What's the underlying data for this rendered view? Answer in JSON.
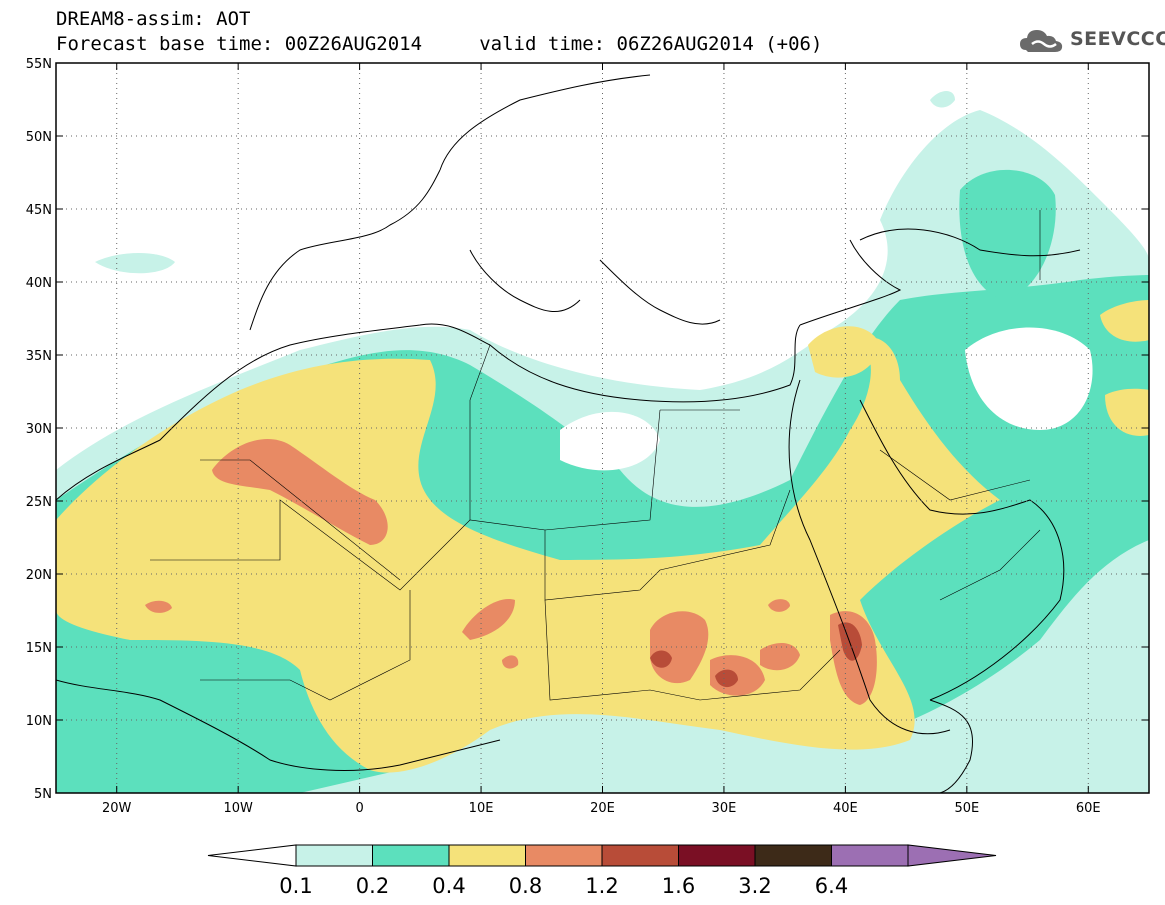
{
  "header": {
    "line1": "DREAM8-assim: AOT",
    "line2": "Forecast base time: 00Z26AUG2014     valid time: 06Z26AUG2014 (+06)"
  },
  "logo": {
    "text": "SEEVCCC",
    "icon": "cloud-icon"
  },
  "map": {
    "lon_range": [
      -25,
      65
    ],
    "lat_range": [
      5,
      55
    ],
    "lon_ticks": [
      {
        "value": -20,
        "label": "20W"
      },
      {
        "value": -10,
        "label": "10W"
      },
      {
        "value": 0,
        "label": "0"
      },
      {
        "value": 10,
        "label": "10E"
      },
      {
        "value": 20,
        "label": "20E"
      },
      {
        "value": 30,
        "label": "30E"
      },
      {
        "value": 40,
        "label": "40E"
      },
      {
        "value": 50,
        "label": "50E"
      },
      {
        "value": 60,
        "label": "60E"
      }
    ],
    "lat_ticks": [
      {
        "value": 55,
        "label": "55N"
      },
      {
        "value": 50,
        "label": "50N"
      },
      {
        "value": 45,
        "label": "45N"
      },
      {
        "value": 40,
        "label": "40N"
      },
      {
        "value": 35,
        "label": "35N"
      },
      {
        "value": 30,
        "label": "30N"
      },
      {
        "value": 25,
        "label": "25N"
      },
      {
        "value": 20,
        "label": "20N"
      },
      {
        "value": 15,
        "label": "15N"
      },
      {
        "value": 10,
        "label": "10N"
      },
      {
        "value": 5,
        "label": "5N"
      }
    ],
    "gridlines": "dotted"
  },
  "colorbar": {
    "labels": [
      "0.1",
      "0.2",
      "0.4",
      "0.8",
      "1.2",
      "1.6",
      "3.2",
      "6.4"
    ],
    "colors": [
      "#ffffff",
      "#c7f2e8",
      "#5ce0bd",
      "#f5e27a",
      "#e88a64",
      "#b84c38",
      "#7a0f24",
      "#3d2a18",
      "#9c6fb3"
    ]
  }
}
